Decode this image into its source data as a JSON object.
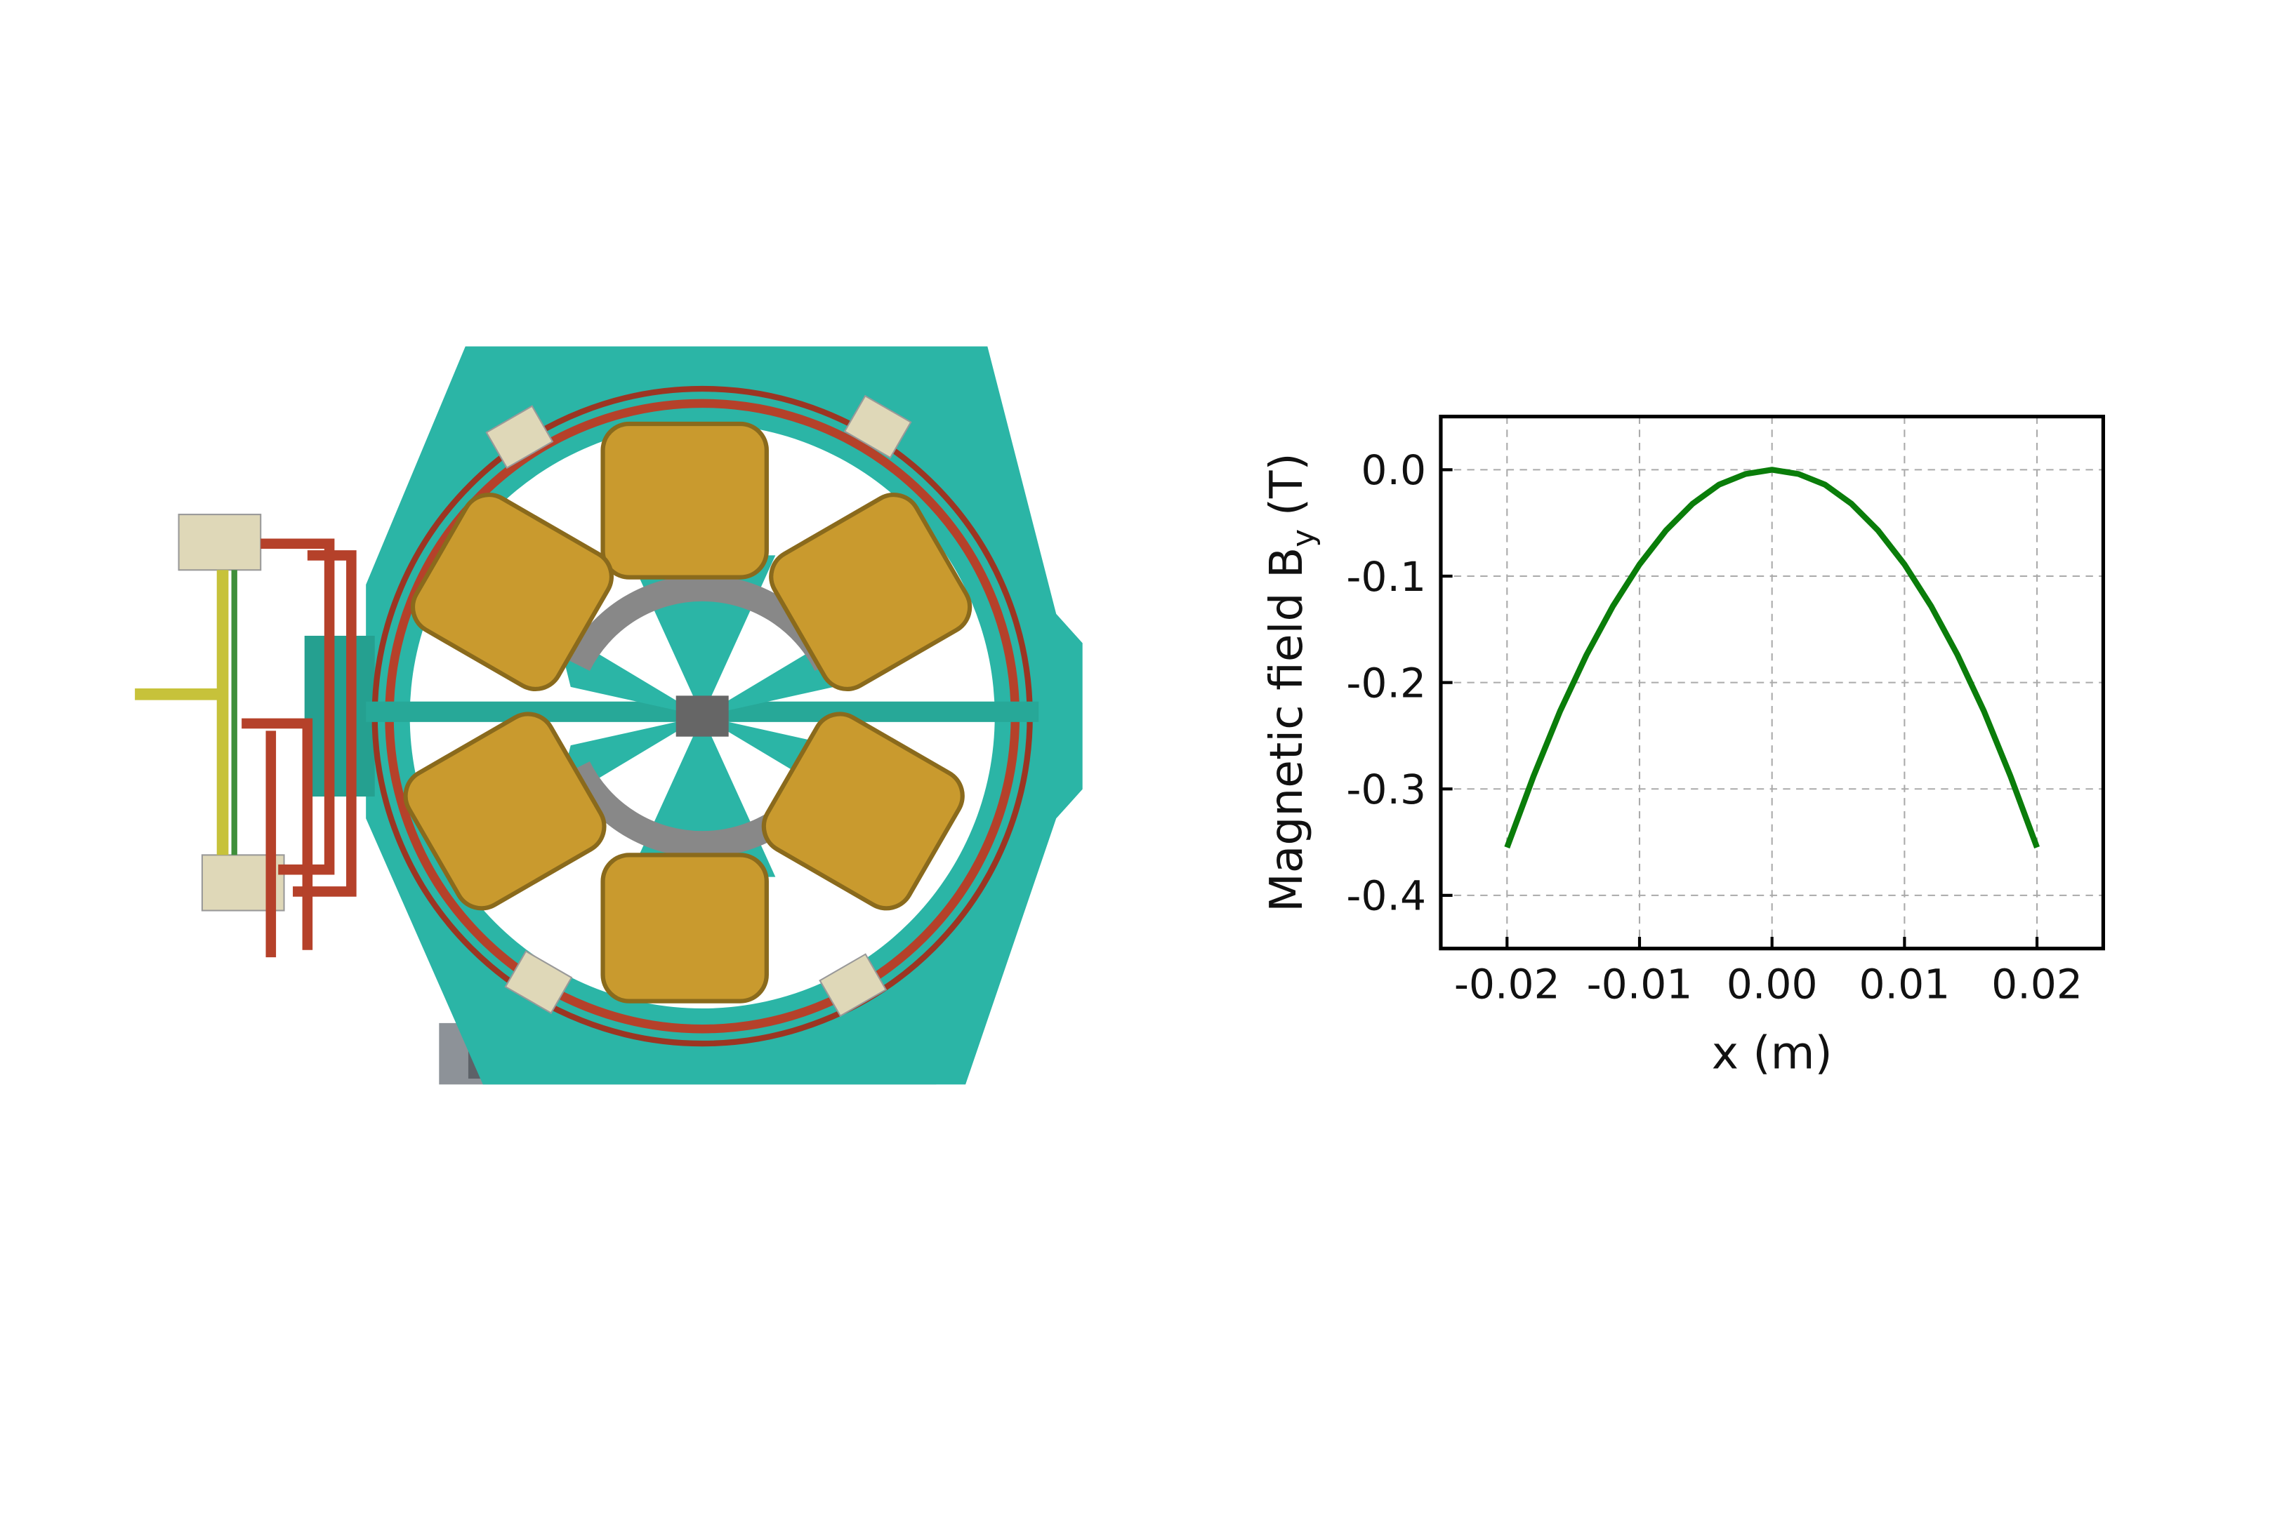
{
  "chart_data": {
    "type": "line",
    "xlabel": "x (m)",
    "ylabel_parts": [
      "Magnetic field B",
      "y",
      "(T)"
    ],
    "x": [
      -0.02,
      -0.018,
      -0.016,
      -0.014,
      -0.012,
      -0.01,
      -0.008,
      -0.006,
      -0.004,
      -0.002,
      0,
      0.002,
      0.004,
      0.006,
      0.008,
      0.01,
      0.012,
      0.014,
      0.016,
      0.018,
      0.02
    ],
    "series": [
      {
        "color": "#0a7d0a",
        "values": [
          -0.355,
          -0.288,
          -0.227,
          -0.174,
          -0.128,
          -0.089,
          -0.057,
          -0.032,
          -0.014,
          -0.004,
          0,
          -0.004,
          -0.014,
          -0.032,
          -0.057,
          -0.089,
          -0.128,
          -0.174,
          -0.227,
          -0.288,
          -0.355
        ]
      }
    ],
    "xlim": [
      -0.025,
      0.025
    ],
    "xticks": [
      -0.02,
      -0.01,
      {
        "value": 0,
        "label": "0.00"
      },
      0.01,
      0.02
    ],
    "ylim": [
      -0.45,
      0.05
    ],
    "yticks": [
      {
        "value": 0,
        "label": "0.0"
      },
      -0.1,
      -0.2,
      -0.3,
      -0.4
    ],
    "grid": true
  }
}
